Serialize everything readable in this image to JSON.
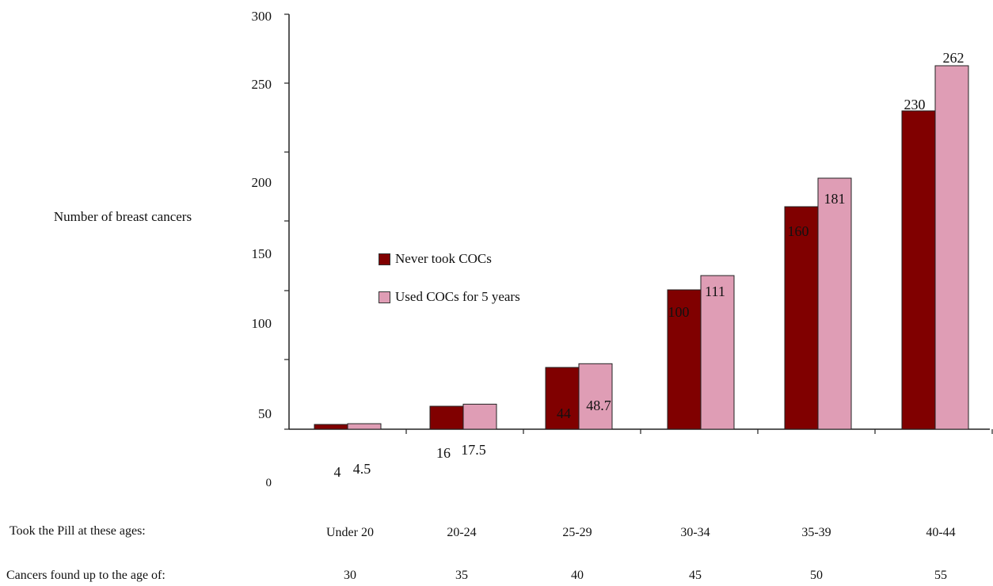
{
  "colors": {
    "never": "#800000",
    "used": "#df9db5",
    "axis": "#222222"
  },
  "chart_data": {
    "type": "bar",
    "ylabel": "Number of breast cancers",
    "yticks": [
      {
        "value": 50,
        "label": "50"
      },
      {
        "value": 100,
        "label": "100"
      },
      {
        "value": 150,
        "label": "150"
      },
      {
        "value": 200,
        "label": "200"
      },
      {
        "value": 250,
        "label": "250"
      },
      {
        "value": 300,
        "label": "300"
      }
    ],
    "zero_label": "0",
    "categories": [
      "Under 20",
      "20-24",
      "25-29",
      "30-34",
      "35-39",
      "40-44"
    ],
    "series": [
      {
        "name": "Never took COCs",
        "values": [
          4,
          16,
          44,
          100,
          160,
          230
        ],
        "labels": [
          "4",
          "16",
          "44",
          "100",
          "160",
          "230"
        ]
      },
      {
        "name": "Used COCs for 5 years",
        "values": [
          4.5,
          17.5,
          48.7,
          111,
          181,
          262
        ],
        "labels": [
          "4.5",
          "17.5",
          "48.7",
          "111",
          "181",
          "262"
        ]
      }
    ],
    "legend_position": "center-left",
    "grid": false
  },
  "rows": {
    "took_label": "Took the Pill at these ages:",
    "found_label": "Cancers found up to the age of:",
    "found_values": [
      "30",
      "35",
      "40",
      "45",
      "50",
      "55"
    ]
  }
}
